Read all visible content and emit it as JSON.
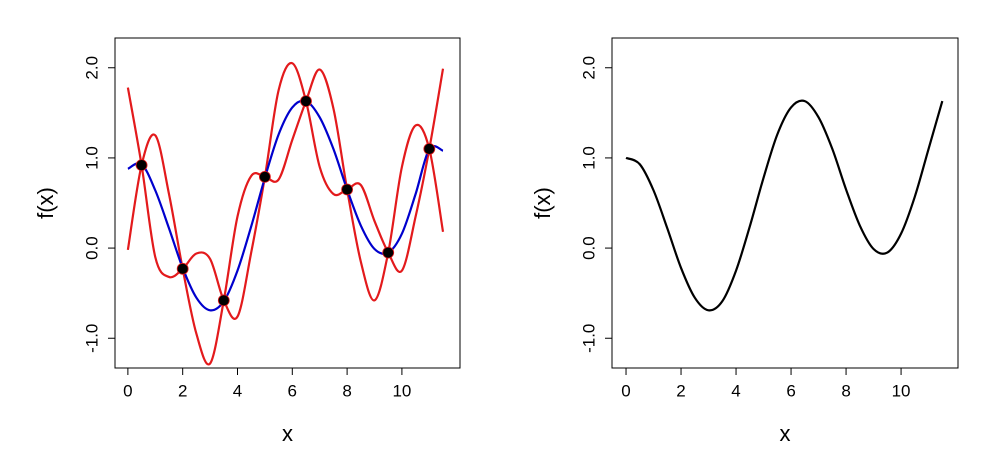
{
  "chart_data": [
    {
      "type": "line",
      "xlabel": "x",
      "ylabel": "f(x)",
      "xlim": [
        -0.47,
        12.12
      ],
      "ylim": [
        -1.33,
        2.33
      ],
      "xticks": [
        0,
        2,
        4,
        6,
        8,
        10
      ],
      "yticks": [
        {
          "value": -1,
          "label": "-1.0"
        },
        {
          "value": 0,
          "label": "0.0"
        },
        {
          "value": 1,
          "label": "1.0"
        },
        {
          "value": 2,
          "label": "2.0"
        }
      ],
      "x": [
        0,
        0.5,
        1,
        1.5,
        2,
        2.5,
        3,
        3.5,
        4,
        4.5,
        5,
        5.5,
        6,
        6.5,
        7,
        7.5,
        8,
        8.5,
        9,
        9.5,
        10,
        10.5,
        11,
        11.5
      ],
      "series": [
        {
          "color": "#e31a1c",
          "values": [
            -0.02,
            0.92,
            1.25,
            0.6,
            -0.23,
            -0.95,
            -1.28,
            -0.58,
            0.35,
            0.8,
            0.79,
            0.76,
            1.2,
            1.63,
            1.98,
            1.55,
            0.65,
            -0.15,
            -0.58,
            -0.05,
            0.9,
            1.36,
            1.1,
            0.18
          ]
        },
        {
          "color": "#e31a1c",
          "values": [
            1.78,
            0.92,
            -0.1,
            -0.32,
            -0.23,
            -0.06,
            -0.12,
            -0.58,
            -0.76,
            -0.05,
            0.79,
            1.75,
            2.05,
            1.63,
            0.9,
            0.6,
            0.65,
            0.7,
            0.3,
            -0.05,
            -0.25,
            0.35,
            1.1,
            1.99
          ]
        },
        {
          "color": "#0000cd",
          "values": [
            0.88,
            0.93,
            0.64,
            0.22,
            -0.22,
            -0.55,
            -0.69,
            -0.59,
            -0.25,
            0.24,
            0.78,
            1.26,
            1.56,
            1.63,
            1.45,
            1.1,
            0.65,
            0.25,
            -0.01,
            -0.05,
            0.16,
            0.6,
            1.1,
            1.08
          ]
        }
      ],
      "points": {
        "color": "#000000",
        "x": [
          0.5,
          2,
          3.5,
          5,
          6.5,
          8,
          9.5,
          11
        ],
        "y": [
          0.92,
          -0.23,
          -0.58,
          0.79,
          1.63,
          0.65,
          -0.05,
          1.1
        ]
      }
    },
    {
      "type": "line",
      "xlabel": "x",
      "ylabel": "f(x)",
      "xlim": [
        -0.51,
        12.07
      ],
      "ylim": [
        -1.33,
        2.33
      ],
      "xticks": [
        0,
        2,
        4,
        6,
        8,
        10
      ],
      "yticks": [
        {
          "value": -1,
          "label": "-1.0"
        },
        {
          "value": 0,
          "label": "0.0"
        },
        {
          "value": 1,
          "label": "1.0"
        },
        {
          "value": 2,
          "label": "2.0"
        }
      ],
      "x": [
        0,
        0.5,
        1,
        1.5,
        2,
        2.5,
        3,
        3.5,
        4,
        4.5,
        5,
        5.5,
        6,
        6.5,
        7,
        7.5,
        8,
        8.5,
        9,
        9.5,
        10,
        10.5,
        11,
        11.5
      ],
      "series": [
        {
          "color": "#000000",
          "values": [
            1.0,
            0.93,
            0.64,
            0.22,
            -0.22,
            -0.55,
            -0.69,
            -0.59,
            -0.25,
            0.24,
            0.78,
            1.26,
            1.56,
            1.63,
            1.45,
            1.1,
            0.65,
            0.25,
            -0.01,
            -0.05,
            0.16,
            0.57,
            1.1,
            1.63
          ]
        }
      ]
    }
  ]
}
